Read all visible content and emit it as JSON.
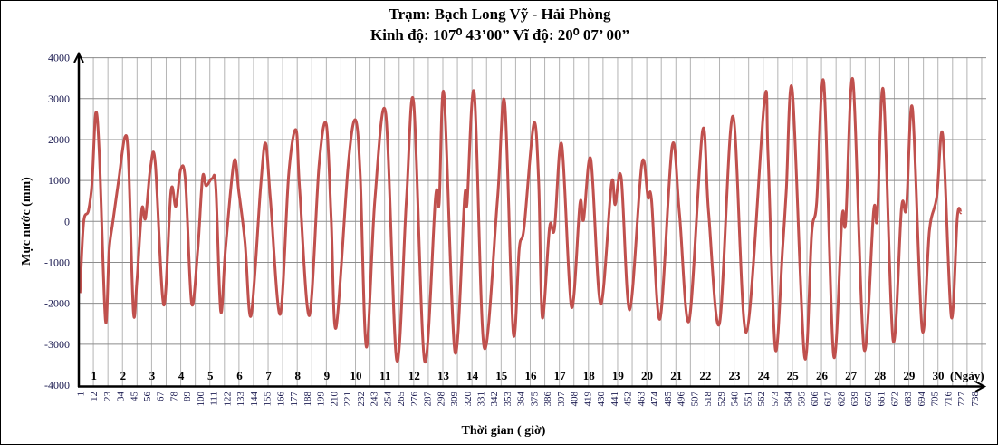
{
  "chart_data": {
    "type": "line",
    "title": "Trạm:  Bạch Long Vỹ - Hải Phòng",
    "subtitle": "Kinh độ: 107⁰ 43’00”  Vĩ độ:  20⁰ 07’ 00”",
    "xlabel": "Thời gian ( giờ)",
    "ylabel": "Mực nước (mm)",
    "ylim": [
      -4000,
      4000
    ],
    "yticks": [
      "4000",
      "3000",
      "2000",
      "1000",
      "0",
      "-1000",
      "-2000",
      "-3000",
      "-4000"
    ],
    "xticks": [
      1,
      12,
      23,
      34,
      45,
      56,
      67,
      78,
      89,
      100,
      111,
      122,
      133,
      144,
      155,
      166,
      177,
      188,
      199,
      210,
      221,
      232,
      243,
      254,
      265,
      276,
      287,
      298,
      309,
      320,
      331,
      342,
      353,
      364,
      375,
      386,
      397,
      408,
      419,
      430,
      441,
      452,
      463,
      474,
      485,
      496,
      507,
      518,
      529,
      540,
      551,
      562,
      573,
      584,
      595,
      606,
      617,
      628,
      639,
      650,
      661,
      672,
      683,
      694,
      705,
      716,
      727,
      738
    ],
    "day_labels": [
      "1",
      "2",
      "3",
      "4",
      "5",
      "6",
      "7",
      "8",
      "9",
      "10",
      "11",
      "12",
      "13",
      "14",
      "15",
      "16",
      "17",
      "18",
      "19",
      "20",
      "21",
      "22",
      "23",
      "24",
      "25",
      "26",
      "27",
      "28",
      "29",
      "30"
    ],
    "day_unit_label": "(Ngày)",
    "grid": true,
    "line_color": "#c0504d",
    "series": [
      {
        "x": [
          1,
          4,
          8,
          11,
          14,
          17,
          22,
          25,
          28,
          33,
          38,
          41,
          45,
          48,
          52,
          55,
          59,
          63,
          70,
          76,
          80,
          84,
          88,
          93,
          98,
          102,
          105,
          110,
          113,
          117,
          121,
          128,
          132,
          137,
          142,
          150,
          154,
          158,
          166,
          173,
          179,
          182,
          190,
          198,
          204,
          208,
          212,
          222,
          228,
          232,
          237,
          244,
          253,
          262,
          270,
          276,
          285,
          294,
          297,
          301,
          310,
          318,
          320,
          326,
          334,
          345,
          351,
          358,
          363,
          367,
          375,
          379,
          382,
          388,
          392,
          398,
          406,
          413,
          416,
          422,
          430,
          439,
          442,
          447,
          454,
          464,
          469,
          472,
          479,
          489,
          495,
          503,
          514,
          519,
          528,
          539,
          550,
          565,
          568,
          574,
          580,
          583,
          588,
          598,
          604,
          608,
          614,
          622,
          629,
          632,
          638,
          647,
          655,
          658,
          663,
          671,
          678,
          682,
          687,
          695,
          701,
          707,
          712,
          719,
          724,
          727
        ],
        "y": [
          -1750,
          -30,
          260,
          960,
          2650,
          1620,
          -2420,
          -730,
          -30,
          1030,
          2060,
          1470,
          -2200,
          -1430,
          300,
          80,
          1290,
          1440,
          -2040,
          740,
          370,
          1270,
          960,
          -2000,
          -730,
          1070,
          870,
          1050,
          810,
          -2200,
          -650,
          1470,
          700,
          -510,
          -2300,
          890,
          1910,
          520,
          -2270,
          1140,
          2240,
          810,
          -2300,
          1360,
          2370,
          80,
          -2600,
          1360,
          2480,
          1100,
          -3070,
          520,
          2630,
          -3390,
          520,
          2900,
          -3410,
          590,
          440,
          3100,
          -3190,
          590,
          440,
          3120,
          -3070,
          520,
          2900,
          -2710,
          -660,
          -140,
          2390,
          960,
          -2350,
          -140,
          -180,
          1880,
          -2090,
          440,
          40,
          1510,
          -2020,
          920,
          410,
          1070,
          -2160,
          1400,
          590,
          520,
          -2380,
          1840,
          190,
          -2420,
          2210,
          220,
          -2490,
          2570,
          -2710,
          2940,
          1620,
          -3120,
          -660,
          740,
          3200,
          -3290,
          -290,
          440,
          3380,
          -3270,
          110,
          0,
          3440,
          -3100,
          260,
          80,
          3200,
          -2900,
          330,
          330,
          2760,
          -2640,
          -220,
          590,
          2100,
          -2330,
          110,
          210
        ]
      }
    ]
  }
}
